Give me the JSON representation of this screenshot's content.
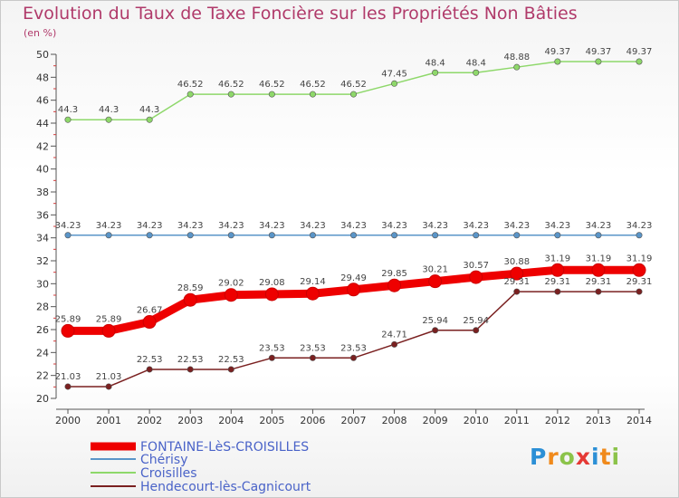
{
  "header": {
    "title": "Evolution du Taux de Taxe Foncière sur les Propriétés Non Bâties",
    "unit": "(en %)"
  },
  "logo": {
    "letters": [
      "P",
      "r",
      "o",
      "x",
      "i",
      "t",
      "i"
    ],
    "colors": [
      "#2b8fd6",
      "#f08a1c",
      "#8bc34a",
      "#e53935",
      "#2b8fd6",
      "#f08a1c",
      "#8bc34a"
    ]
  },
  "chart_data": {
    "type": "line",
    "title": "Evolution du Taux de Taxe Foncière sur les Propriétés Non Bâties",
    "ylabel": "(en %)",
    "xlabel": "",
    "x": [
      2000,
      2001,
      2002,
      2003,
      2004,
      2005,
      2006,
      2007,
      2008,
      2009,
      2010,
      2011,
      2012,
      2013,
      2014
    ],
    "ylim": [
      20,
      50
    ],
    "yticks": [
      20,
      22,
      24,
      26,
      28,
      30,
      32,
      34,
      36,
      38,
      40,
      42,
      44,
      46,
      48,
      50
    ],
    "grid": false,
    "legend_position": "bottom-left",
    "series": [
      {
        "name": "FONTAINE-LèS-CROISILLES",
        "color": "#ee0000",
        "values": [
          25.89,
          25.89,
          26.67,
          28.59,
          29.02,
          29.08,
          29.14,
          29.49,
          29.85,
          30.21,
          30.57,
          30.88,
          31.19,
          31.19,
          31.19
        ],
        "labels": [
          "25.89",
          "25.89",
          "26.67",
          "28.59",
          "29.02",
          "29.08",
          "29.14",
          "29.49",
          "29.85",
          "30.21",
          "30.57",
          "30.88",
          "31.19",
          "31.19",
          "31.19"
        ]
      },
      {
        "name": "Chérisy",
        "color": "#5a95c8",
        "values": [
          34.23,
          34.23,
          34.23,
          34.23,
          34.23,
          34.23,
          34.23,
          34.23,
          34.23,
          34.23,
          34.23,
          34.23,
          34.23,
          34.23,
          34.23
        ],
        "labels": [
          "34.23",
          "34.23",
          "34.23",
          "34.23",
          "34.23",
          "34.23",
          "34.23",
          "34.23",
          "34.23",
          "34.23",
          "34.23",
          "34.23",
          "34.23",
          "34.23",
          "34.23"
        ]
      },
      {
        "name": "Croisilles",
        "color": "#8ed86a",
        "values": [
          44.3,
          44.3,
          44.3,
          46.52,
          46.52,
          46.52,
          46.52,
          46.52,
          47.45,
          48.4,
          48.4,
          48.88,
          49.37,
          49.37,
          49.37
        ],
        "labels": [
          "44.3",
          "44.3",
          "44.3",
          "46.52",
          "46.52",
          "46.52",
          "46.52",
          "46.52",
          "47.45",
          "48.4",
          "48.4",
          "48.88",
          "49.37",
          "49.37",
          "49.37"
        ]
      },
      {
        "name": "Hendecourt-lès-Cagnicourt",
        "color": "#7a2020",
        "values": [
          21.03,
          21.03,
          22.53,
          22.53,
          22.53,
          23.53,
          23.53,
          23.53,
          24.71,
          25.94,
          25.94,
          29.31,
          29.31,
          29.31,
          29.31
        ],
        "labels": [
          "21.03",
          "21.03",
          "22.53",
          "22.53",
          "22.53",
          "23.53",
          "23.53",
          "23.53",
          "24.71",
          "25.94",
          "25.94",
          "29.31",
          "29.31",
          "29.31",
          "29.31"
        ]
      }
    ]
  }
}
